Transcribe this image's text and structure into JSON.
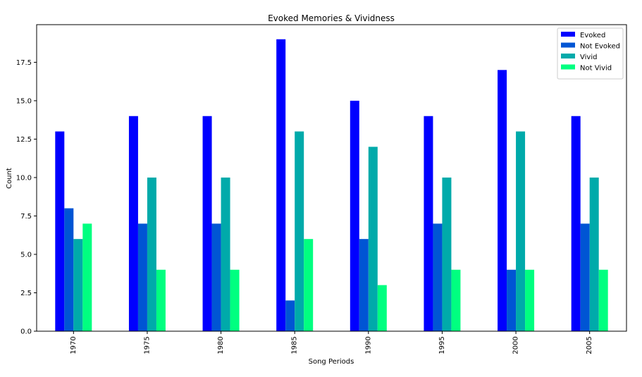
{
  "chart_data": {
    "type": "bar",
    "title": "Evoked Memories & Vividness",
    "xlabel": "Song Periods",
    "ylabel": "Count",
    "categories": [
      "1970",
      "1975",
      "1980",
      "1985",
      "1990",
      "1995",
      "2000",
      "2005"
    ],
    "series": [
      {
        "name": "Evoked",
        "color": "#0000ff",
        "values": [
          13,
          14,
          14,
          19,
          15,
          14,
          17,
          14
        ]
      },
      {
        "name": "Not Evoked",
        "color": "#0055d4",
        "values": [
          8,
          7,
          7,
          2,
          6,
          7,
          4,
          7
        ]
      },
      {
        "name": "Vivid",
        "color": "#00aaaa",
        "values": [
          6,
          10,
          10,
          13,
          12,
          10,
          13,
          10
        ]
      },
      {
        "name": "Not Vivid",
        "color": "#00ff80",
        "values": [
          7,
          4,
          4,
          6,
          3,
          4,
          4,
          4
        ]
      }
    ],
    "ylim": [
      0,
      19.95
    ],
    "yticks": [
      "0.0",
      "2.5",
      "5.0",
      "7.5",
      "10.0",
      "12.5",
      "15.0",
      "17.5"
    ],
    "grid": false,
    "legend_position": "top-right"
  }
}
